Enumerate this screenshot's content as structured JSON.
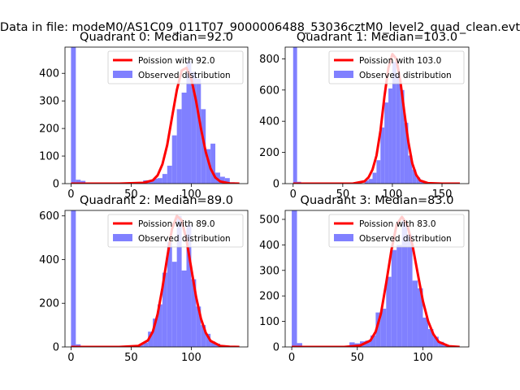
{
  "suptitle": "Data in file: modeM0/AS1C09_011T07_9000006488_53036cztM0_level2_quad_clean.evt",
  "colors": {
    "hist": "#8080ff",
    "fit": "#ff0000",
    "axis": "#000000"
  },
  "chart_data": [
    {
      "type": "bar+line",
      "title": "Quadrant 0: Median=92.0",
      "xlim": [
        -5,
        147
      ],
      "ylim": [
        0,
        495
      ],
      "xticks": [
        0,
        50,
        100
      ],
      "yticks": [
        0,
        100,
        200,
        300,
        400
      ],
      "bin_width": 4,
      "legend": {
        "position": "top-right",
        "fit_label": "Poission with 92.0",
        "hist_label": "Observed distribution"
      },
      "bars": [
        {
          "x": 0,
          "y": 495
        },
        {
          "x": 4,
          "y": 14
        },
        {
          "x": 8,
          "y": 10
        },
        {
          "x": 56,
          "y": 5
        },
        {
          "x": 60,
          "y": 12
        },
        {
          "x": 64,
          "y": 8
        },
        {
          "x": 68,
          "y": 18
        },
        {
          "x": 72,
          "y": 20
        },
        {
          "x": 76,
          "y": 35
        },
        {
          "x": 80,
          "y": 65
        },
        {
          "x": 84,
          "y": 175
        },
        {
          "x": 88,
          "y": 270
        },
        {
          "x": 92,
          "y": 330
        },
        {
          "x": 96,
          "y": 445
        },
        {
          "x": 100,
          "y": 405
        },
        {
          "x": 104,
          "y": 380
        },
        {
          "x": 108,
          "y": 270
        },
        {
          "x": 112,
          "y": 125
        },
        {
          "x": 116,
          "y": 145
        },
        {
          "x": 120,
          "y": 40
        },
        {
          "x": 124,
          "y": 25
        },
        {
          "x": 128,
          "y": 20
        },
        {
          "x": 132,
          "y": 5
        }
      ],
      "fit": {
        "x": [
          0,
          40,
          60,
          68,
          72,
          76,
          80,
          84,
          88,
          92,
          96,
          100,
          104,
          108,
          112,
          116,
          120,
          124,
          132,
          140
        ],
        "y": [
          0,
          0,
          3,
          12,
          30,
          70,
          140,
          240,
          340,
          410,
          420,
          380,
          300,
          200,
          115,
          55,
          22,
          8,
          1,
          0
        ]
      }
    },
    {
      "type": "bar+line",
      "title": "Quadrant 1: Median=103.0",
      "xlim": [
        -8,
        177
      ],
      "ylim": [
        0,
        875
      ],
      "xticks": [
        0,
        50,
        100,
        150
      ],
      "yticks": [
        0,
        200,
        400,
        600,
        800
      ],
      "bin_width": 4,
      "legend": {
        "position": "top-right",
        "fit_label": "Poission with 103.0",
        "hist_label": "Observed distribution"
      },
      "bars": [
        {
          "x": 0,
          "y": 875
        },
        {
          "x": 4,
          "y": 12
        },
        {
          "x": 72,
          "y": 20
        },
        {
          "x": 76,
          "y": 30
        },
        {
          "x": 80,
          "y": 70
        },
        {
          "x": 84,
          "y": 150
        },
        {
          "x": 88,
          "y": 360
        },
        {
          "x": 92,
          "y": 520
        },
        {
          "x": 96,
          "y": 610
        },
        {
          "x": 100,
          "y": 780
        },
        {
          "x": 104,
          "y": 700
        },
        {
          "x": 108,
          "y": 600
        },
        {
          "x": 112,
          "y": 390
        },
        {
          "x": 116,
          "y": 180
        },
        {
          "x": 120,
          "y": 90
        },
        {
          "x": 124,
          "y": 40
        },
        {
          "x": 128,
          "y": 15
        }
      ],
      "fit": {
        "x": [
          0,
          60,
          72,
          76,
          80,
          84,
          88,
          92,
          96,
          100,
          104,
          108,
          112,
          116,
          120,
          124,
          128,
          136,
          150,
          168
        ],
        "y": [
          0,
          0,
          15,
          40,
          90,
          180,
          340,
          560,
          740,
          830,
          800,
          660,
          460,
          270,
          130,
          55,
          20,
          3,
          0,
          0
        ]
      }
    },
    {
      "type": "bar+line",
      "title": "Quadrant 2: Median=89.0",
      "xlim": [
        -5,
        147
      ],
      "ylim": [
        0,
        625
      ],
      "xticks": [
        0,
        50,
        100
      ],
      "yticks": [
        0,
        200,
        400,
        600
      ],
      "bin_width": 4,
      "legend": {
        "position": "top-right",
        "fit_label": "Poission with 89.0",
        "hist_label": "Observed distribution"
      },
      "bars": [
        {
          "x": 0,
          "y": 625
        },
        {
          "x": 4,
          "y": 12
        },
        {
          "x": 48,
          "y": 5
        },
        {
          "x": 52,
          "y": 8
        },
        {
          "x": 56,
          "y": 10
        },
        {
          "x": 60,
          "y": 20
        },
        {
          "x": 64,
          "y": 70
        },
        {
          "x": 68,
          "y": 130
        },
        {
          "x": 72,
          "y": 195
        },
        {
          "x": 76,
          "y": 340
        },
        {
          "x": 80,
          "y": 480
        },
        {
          "x": 84,
          "y": 390
        },
        {
          "x": 88,
          "y": 600
        },
        {
          "x": 92,
          "y": 350
        },
        {
          "x": 96,
          "y": 560
        },
        {
          "x": 100,
          "y": 310
        },
        {
          "x": 104,
          "y": 185
        },
        {
          "x": 108,
          "y": 100
        },
        {
          "x": 112,
          "y": 60
        },
        {
          "x": 116,
          "y": 25
        },
        {
          "x": 120,
          "y": 15
        },
        {
          "x": 124,
          "y": 8
        }
      ],
      "fit": {
        "x": [
          0,
          40,
          56,
          64,
          68,
          72,
          76,
          80,
          84,
          88,
          92,
          96,
          100,
          104,
          108,
          112,
          116,
          124,
          132,
          140
        ],
        "y": [
          0,
          0,
          5,
          30,
          70,
          150,
          270,
          410,
          540,
          600,
          580,
          490,
          360,
          230,
          130,
          65,
          28,
          5,
          1,
          0
        ]
      }
    },
    {
      "type": "bar+line",
      "title": "Quadrant 3: Median=83.0",
      "xlim": [
        -5,
        135
      ],
      "ylim": [
        0,
        535
      ],
      "xticks": [
        0,
        50,
        100
      ],
      "yticks": [
        0,
        100,
        200,
        300,
        400,
        500
      ],
      "bin_width": 4,
      "legend": {
        "position": "top-right",
        "fit_label": "Poission with 83.0",
        "hist_label": "Observed distribution"
      },
      "bars": [
        {
          "x": 0,
          "y": 535
        },
        {
          "x": 4,
          "y": 15
        },
        {
          "x": 44,
          "y": 18
        },
        {
          "x": 48,
          "y": 14
        },
        {
          "x": 52,
          "y": 22
        },
        {
          "x": 56,
          "y": 25
        },
        {
          "x": 60,
          "y": 45
        },
        {
          "x": 64,
          "y": 135
        },
        {
          "x": 68,
          "y": 150
        },
        {
          "x": 72,
          "y": 275
        },
        {
          "x": 76,
          "y": 380
        },
        {
          "x": 80,
          "y": 400
        },
        {
          "x": 84,
          "y": 495
        },
        {
          "x": 88,
          "y": 440
        },
        {
          "x": 92,
          "y": 260
        },
        {
          "x": 96,
          "y": 230
        },
        {
          "x": 100,
          "y": 115
        },
        {
          "x": 104,
          "y": 70
        },
        {
          "x": 108,
          "y": 40
        },
        {
          "x": 112,
          "y": 20
        },
        {
          "x": 116,
          "y": 8
        }
      ],
      "fit": {
        "x": [
          0,
          40,
          52,
          60,
          64,
          68,
          72,
          76,
          80,
          84,
          88,
          92,
          96,
          100,
          104,
          108,
          112,
          120,
          128
        ],
        "y": [
          0,
          0,
          5,
          25,
          60,
          130,
          250,
          380,
          480,
          510,
          480,
          400,
          290,
          180,
          100,
          50,
          20,
          3,
          0
        ]
      }
    }
  ]
}
